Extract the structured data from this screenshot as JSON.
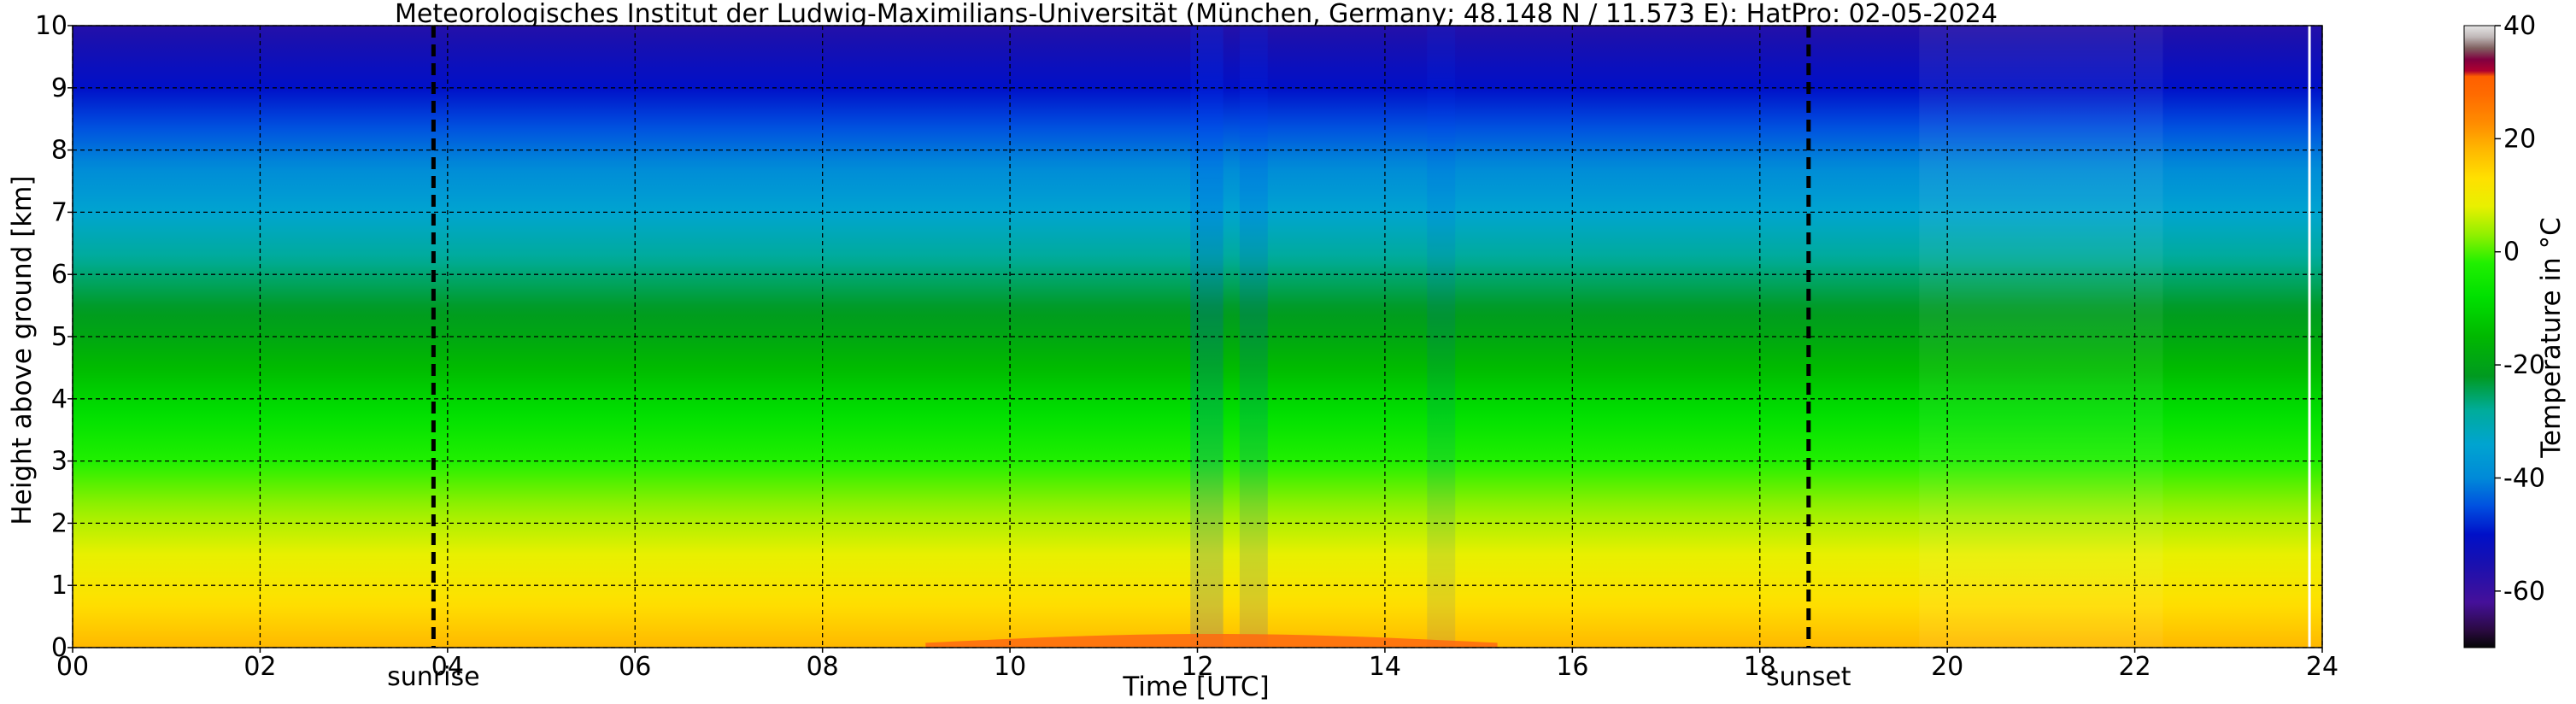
{
  "chart_data": {
    "type": "heatmap",
    "title": "Meteorologisches Institut der Ludwig-Maximilians-Universität (München, Germany; 48.148 N / 11.573 E):    HatPro: 02-05-2024",
    "xlabel": "Time [UTC]",
    "ylabel": "Height above ground [km]",
    "xlim": [
      0,
      24
    ],
    "ylim": [
      0,
      10
    ],
    "x_ticks": [
      "00",
      "02",
      "04",
      "06",
      "08",
      "10",
      "12",
      "14",
      "16",
      "18",
      "20",
      "22",
      "24"
    ],
    "y_ticks": [
      "0",
      "1",
      "2",
      "3",
      "4",
      "5",
      "6",
      "7",
      "8",
      "9",
      "10"
    ],
    "grid": true,
    "events": [
      {
        "label": "sunrise",
        "time_hours": 3.85
      },
      {
        "label": "sunset",
        "time_hours": 18.52
      }
    ],
    "colorbar": {
      "label": "Temperature in °C",
      "range": [
        -70,
        40
      ],
      "ticks": [
        "-60",
        "-40",
        "-20",
        "0",
        "20",
        "40"
      ],
      "tick_values": [
        -60,
        -40,
        -20,
        0,
        20,
        40
      ]
    },
    "temperature_profile": {
      "heights_km": [
        0,
        1,
        2,
        3,
        4,
        5,
        6,
        7,
        8,
        9,
        10
      ],
      "temperature_c": [
        18,
        11,
        5,
        -2,
        -10,
        -19,
        -26,
        -34,
        -42,
        -50,
        -57
      ]
    },
    "surface_max_temperature_c": 22
  }
}
